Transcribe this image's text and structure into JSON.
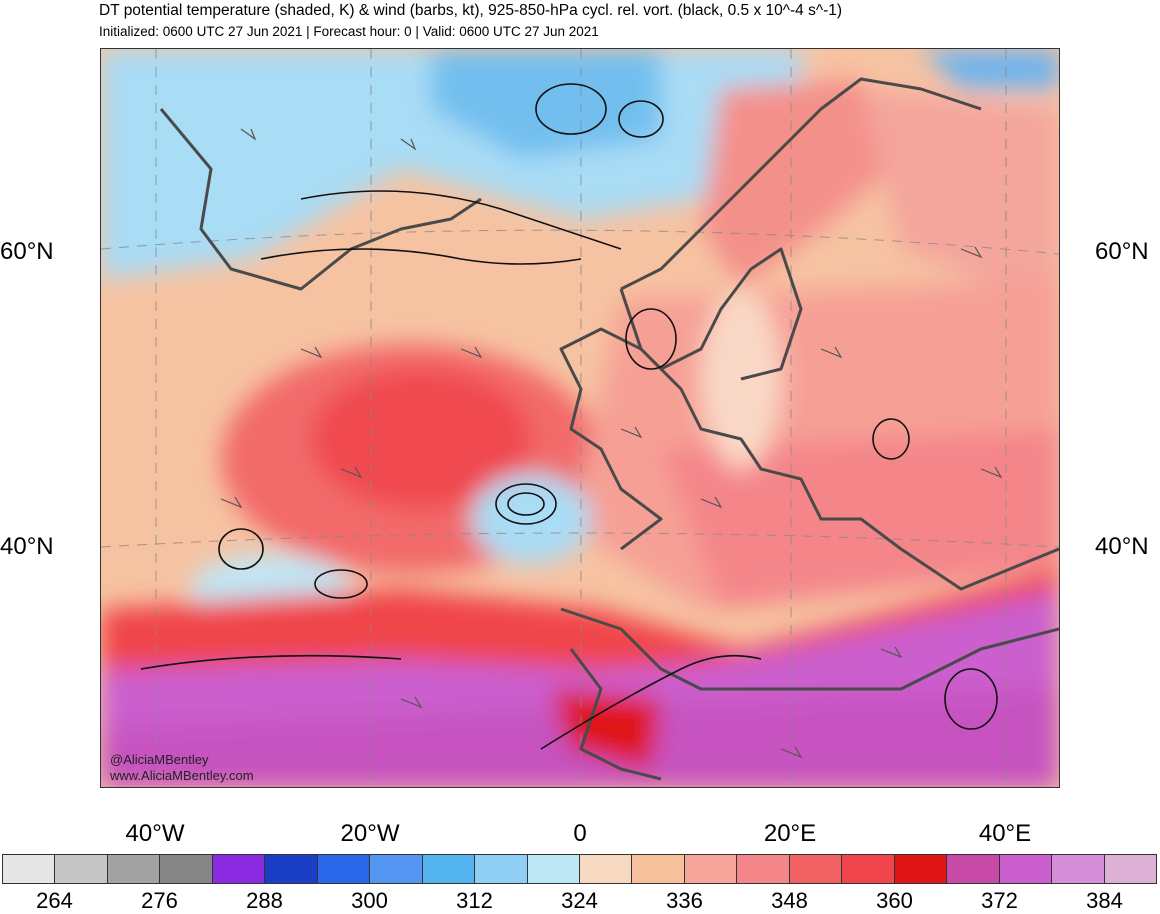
{
  "title": "DT potential temperature (shaded, K) & wind (barbs, kt), 925-850-hPa cycl. rel. vort. (black, 0.5 x 10^-4 s^-1)",
  "subtitle": "Initialized: 0600 UTC 27 Jun 2021 | Forecast hour: 0 | Valid: 0600 UTC 27 Jun 2021",
  "lat_labels": [
    "60°N",
    "40°N"
  ],
  "lon_labels": [
    "40°W",
    "20°W",
    "0",
    "20°E",
    "40°E"
  ],
  "colorbar": {
    "colors": [
      "#e6e6e6",
      "#c6c6c6",
      "#a2a2a2",
      "#868686",
      "#8a2be2",
      "#1b3ec7",
      "#2a66e8",
      "#5596f3",
      "#54b4ef",
      "#8fcff4",
      "#bde7f5",
      "#f7d8c0",
      "#f6c09d",
      "#f6a59a",
      "#f4868a",
      "#f26163",
      "#f0454a",
      "#e01616",
      "#c84aa8",
      "#cb5fce",
      "#d58fd9",
      "#ddb0d6"
    ],
    "labels": [
      "264",
      "276",
      "288",
      "300",
      "312",
      "324",
      "336",
      "348",
      "360",
      "372",
      "384"
    ]
  },
  "credits": [
    "@AliciaMBentley",
    "www.AliciaMBentley.com"
  ]
}
